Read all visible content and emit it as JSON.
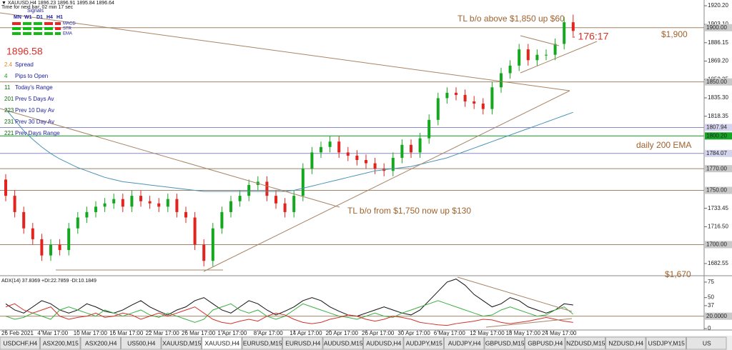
{
  "chart_data": [
    {
      "type": "candlestick",
      "categories": [
        "26 Feb 2021",
        null,
        null,
        null,
        "4 Mar 17:00",
        null,
        null,
        null,
        "10 Mar 17:00",
        null,
        null,
        null,
        "16 Mar 17:00",
        null,
        null,
        null,
        "22 Mar 17:00",
        null,
        null,
        null,
        "26 Mar 17:00",
        null,
        null,
        null,
        "1 Apr 17:00",
        null,
        null,
        null,
        "8 Apr 17:00",
        null,
        null,
        null,
        "14 Apr 17:00",
        null,
        null,
        null,
        "20 Apr 17:00",
        null,
        null,
        null,
        "26 Apr 17:00",
        null,
        null,
        null,
        "30 Apr 17:00",
        null,
        null,
        null,
        "6 May 17:00",
        null,
        null,
        null,
        "12 May 17:00",
        null,
        null,
        null,
        "18 May 17:00",
        null,
        null,
        null,
        "24 May 17:00",
        null,
        null,
        null
      ],
      "open": [
        1760,
        1745,
        1730,
        1715,
        1705,
        1690,
        1700,
        1695,
        1715,
        1725,
        1730,
        1735,
        1738,
        1742,
        1735,
        1745,
        1740,
        1738,
        1735,
        1742,
        1730,
        1725,
        1700,
        1685,
        1715,
        1730,
        1740,
        1745,
        1755,
        1758,
        1745,
        1738,
        1730,
        1745,
        1770,
        1785,
        1790,
        1795,
        1785,
        1782,
        1778,
        1775,
        1770,
        1768,
        1780,
        1792,
        1785,
        1798,
        1815,
        1835,
        1840,
        1838,
        1832,
        1830,
        1825,
        1845,
        1858,
        1865,
        1880,
        1870,
        1875,
        1875,
        1885,
        1905
      ],
      "high": [
        1765,
        1750,
        1735,
        1720,
        1710,
        1705,
        1705,
        1720,
        1730,
        1735,
        1740,
        1743,
        1747,
        1747,
        1750,
        1750,
        1745,
        1743,
        1747,
        1747,
        1735,
        1730,
        1705,
        1720,
        1735,
        1745,
        1750,
        1760,
        1763,
        1763,
        1750,
        1743,
        1750,
        1775,
        1790,
        1795,
        1800,
        1800,
        1790,
        1787,
        1783,
        1780,
        1775,
        1785,
        1797,
        1797,
        1803,
        1820,
        1840,
        1845,
        1845,
        1843,
        1837,
        1835,
        1850,
        1863,
        1870,
        1885,
        1885,
        1880,
        1880,
        1890,
        1910,
        1912
      ],
      "low": [
        1740,
        1725,
        1710,
        1700,
        1685,
        1685,
        1690,
        1690,
        1710,
        1720,
        1725,
        1730,
        1733,
        1730,
        1730,
        1735,
        1733,
        1730,
        1730,
        1725,
        1720,
        1695,
        1680,
        1680,
        1710,
        1725,
        1735,
        1740,
        1750,
        1740,
        1733,
        1725,
        1725,
        1740,
        1765,
        1780,
        1785,
        1780,
        1777,
        1773,
        1770,
        1765,
        1763,
        1763,
        1775,
        1780,
        1780,
        1793,
        1810,
        1830,
        1833,
        1827,
        1825,
        1820,
        1820,
        1840,
        1853,
        1860,
        1865,
        1865,
        1870,
        1870,
        1880,
        1892
      ],
      "close": [
        1745,
        1730,
        1715,
        1705,
        1690,
        1700,
        1695,
        1715,
        1725,
        1730,
        1735,
        1738,
        1742,
        1735,
        1745,
        1740,
        1738,
        1735,
        1742,
        1730,
        1725,
        1700,
        1685,
        1715,
        1730,
        1740,
        1745,
        1755,
        1758,
        1745,
        1738,
        1730,
        1745,
        1770,
        1785,
        1790,
        1795,
        1785,
        1782,
        1778,
        1775,
        1770,
        1768,
        1780,
        1792,
        1785,
        1798,
        1815,
        1835,
        1840,
        1838,
        1832,
        1830,
        1825,
        1845,
        1858,
        1865,
        1880,
        1870,
        1875,
        1875,
        1885,
        1905,
        1897
      ],
      "up_color": "#14a81e",
      "down_color": "#e3231c",
      "ema": {
        "color": "#4a93b6",
        "values": [
          1825,
          1815,
          1805,
          1797,
          1790,
          1784,
          1779,
          1775,
          1771,
          1768,
          1765,
          1762,
          1760,
          1758,
          1757,
          1756,
          1755,
          1754,
          1753,
          1752,
          1751,
          1750,
          1749,
          1749,
          1749,
          1749,
          1749,
          1749,
          1749,
          1749,
          1749,
          1749,
          1750,
          1752,
          1754,
          1756,
          1758,
          1760,
          1762,
          1764,
          1766,
          1768,
          1769,
          1770,
          1771,
          1772,
          1774,
          1776,
          1778,
          1780,
          1783,
          1786,
          1789,
          1792,
          1795,
          1798,
          1801,
          1804,
          1807,
          1810,
          1813,
          1816,
          1819,
          1822
        ]
      },
      "ylim": [
        1672,
        1925.5
      ],
      "yticks": [
        {
          "value": 1920.2,
          "label": "1920.20"
        },
        {
          "value": 1903.1,
          "label": "1903.10"
        },
        1886.15,
        {
          "value": 1869.2,
          "label": "1869.20"
        },
        1852.25,
        {
          "value": 1835.3,
          "label": "1835.30"
        },
        1818.35,
        1733.45,
        {
          "value": 1716.5,
          "label": "1716.50"
        },
        1682.55
      ],
      "levels": [
        {
          "value": 1900,
          "label": "1900.00",
          "color": "#a08468",
          "box_color": "#c9c9c9"
        },
        {
          "value": 1850,
          "label": "1850.00",
          "color": "#a08468",
          "box_color": "#c9c9c9"
        },
        {
          "value": 1807.94,
          "label": "1807.94",
          "color": "#8a8ac8",
          "box_color": "#d4d4ee"
        },
        {
          "value": 1800.2,
          "label": "1800.20",
          "color": "#0a9a1a",
          "box_color": "#16a526"
        },
        {
          "value": 1784.07,
          "label": "1784.07",
          "color": "#8a8ac8",
          "box_color": "#d4d4ee"
        },
        {
          "value": 1770,
          "label": "1770.00",
          "color": "#a08468",
          "box_color": "#c9c9c9"
        },
        {
          "value": 1750,
          "label": "1750.00",
          "color": "#a08468",
          "box_color": "#c9c9c9"
        },
        {
          "value": 1700,
          "label": "1700.00",
          "color": "#a08468",
          "box_color": "#c9c9c9"
        }
      ]
    },
    {
      "type": "line",
      "title": "ADX(14) 37.8369 +DI:22.7859 -DI:10.1849",
      "series": [
        {
          "color": "#111111",
          "values": [
            40,
            30,
            25,
            35,
            45,
            40,
            30,
            25,
            30,
            40,
            35,
            28,
            25,
            30,
            38,
            45,
            35,
            28,
            22,
            30,
            35,
            45,
            50,
            40,
            30,
            25,
            35,
            45,
            40,
            30,
            22,
            28,
            35,
            45,
            50,
            45,
            35,
            28,
            22,
            20,
            25,
            30,
            35,
            30,
            25,
            22,
            30,
            45,
            60,
            75,
            80,
            70,
            55,
            45,
            35,
            40,
            50,
            45,
            35,
            30,
            25,
            30,
            40,
            38
          ]
        },
        {
          "color": "#3cb043",
          "values": [
            20,
            15,
            18,
            25,
            20,
            15,
            30,
            35,
            30,
            25,
            20,
            30,
            25,
            20,
            25,
            30,
            22,
            18,
            25,
            20,
            15,
            10,
            15,
            30,
            35,
            40,
            30,
            25,
            30,
            20,
            15,
            20,
            30,
            40,
            35,
            30,
            25,
            20,
            18,
            15,
            20,
            25,
            20,
            18,
            25,
            30,
            35,
            40,
            45,
            40,
            35,
            30,
            25,
            20,
            22,
            30,
            35,
            30,
            25,
            20,
            22,
            30,
            35,
            23
          ]
        },
        {
          "color": "#d2322a",
          "values": [
            35,
            40,
            30,
            25,
            30,
            35,
            20,
            15,
            18,
            20,
            25,
            18,
            20,
            25,
            22,
            15,
            20,
            25,
            20,
            25,
            30,
            35,
            25,
            15,
            10,
            8,
            12,
            15,
            12,
            20,
            25,
            22,
            15,
            10,
            8,
            10,
            15,
            18,
            22,
            20,
            15,
            12,
            15,
            20,
            18,
            15,
            10,
            8,
            6,
            5,
            8,
            10,
            12,
            15,
            14,
            10,
            8,
            10,
            12,
            15,
            18,
            15,
            12,
            10
          ]
        }
      ],
      "ylim": [
        0,
        83
      ],
      "yticks": [
        75,
        50,
        37,
        0
      ],
      "levels": [
        {
          "value": 20,
          "label": "20.0000",
          "color": "#a08468",
          "box_color": "#c9c9c9"
        }
      ]
    }
  ],
  "ui": {
    "header": "▼ XAUUSD,H4 1896.23 1896.91 1895.84 1896.64",
    "timer": "Time for next bar: 02 min 17 sec",
    "signals": {
      "title": "Signals",
      "timeframes": [
        "MN",
        "W1",
        "D1",
        "H4",
        "H1"
      ],
      "rows": [
        "MACD",
        "STR",
        "EMA"
      ]
    },
    "price": "1896.58",
    "stats": [
      [
        "2.4",
        "Spread"
      ],
      [
        "4",
        "Pips to Open"
      ],
      [
        "11",
        "Today's Range"
      ],
      [
        "201",
        "Prev 5 Days Av"
      ],
      [
        "223",
        "Prev 10 Day Av"
      ],
      [
        "231",
        "Prev 30 Day Av"
      ],
      [
        "221",
        "Prev Days Range"
      ]
    ],
    "annotations": [
      "TL b/o above $1,850 up $60",
      "- 176:17",
      "$1,900",
      "daily 200 EMA",
      "TL b/o from $1,750 now up $130",
      "$1,670"
    ],
    "tabs": [
      "USDCHF,H4",
      "ASX200,M15",
      "ASX200,H4",
      "US500,H4",
      "XAUUSD,M15",
      "XAUUSD,H4",
      "EURUSD,M15",
      "EURUSD,H4",
      "AUDUSD,M15",
      "AUDUSD,H4",
      "AUDJPY,M15",
      "AUDJPY,H4",
      "GBPUSD,M15",
      "GBPUSD,H4",
      "NZDUSD,M15",
      "NZDUSD,H4",
      "USDJPY,M15",
      "US"
    ],
    "active_tab": 5
  }
}
